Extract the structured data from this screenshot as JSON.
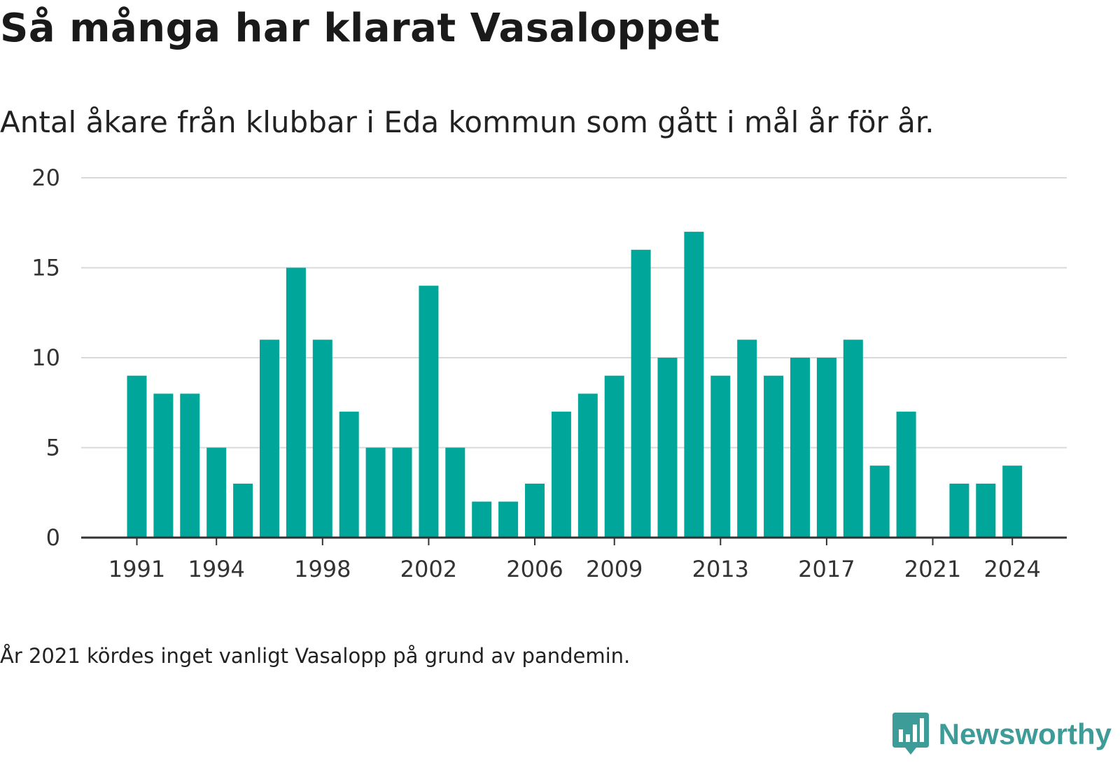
{
  "title": "Så många har klarat Vasaloppet",
  "subtitle": "Antal åkare från klubbar i Eda kommun som gått i mål år för år.",
  "note": "År 2021 kördes inget vanligt Vasalopp på grund av pandemin.",
  "brand": {
    "name": "Newsworthy",
    "color": "#3d9b98",
    "logo_icon": "chat-bubble-bar-chart-icon"
  },
  "colors": {
    "bar": "#00a69a",
    "grid": "#d9d9d9",
    "axis": "#333333"
  },
  "chart_data": {
    "type": "bar",
    "title": "Så många har klarat Vasaloppet",
    "subtitle": "Antal åkare från klubbar i Eda kommun som gått i mål år för år.",
    "xlabel": "",
    "ylabel": "",
    "categories": [
      1991,
      1992,
      1993,
      1994,
      1995,
      1996,
      1997,
      1998,
      1999,
      2000,
      2001,
      2002,
      2003,
      2004,
      2005,
      2006,
      2007,
      2008,
      2009,
      2010,
      2011,
      2012,
      2013,
      2014,
      2015,
      2016,
      2017,
      2018,
      2019,
      2020,
      2021,
      2022,
      2023,
      2024
    ],
    "values": [
      9,
      8,
      8,
      5,
      3,
      11,
      15,
      11,
      7,
      5,
      5,
      14,
      5,
      2,
      2,
      3,
      7,
      8,
      9,
      16,
      10,
      17,
      9,
      11,
      9,
      10,
      10,
      11,
      4,
      7,
      0,
      3,
      3,
      4
    ],
    "xticks": [
      "1991",
      "1994",
      "1998",
      "2002",
      "2006",
      "2009",
      "2013",
      "2017",
      "2021",
      "2024"
    ],
    "yticks": [
      0,
      5,
      10,
      15,
      20
    ],
    "ylim": [
      0,
      20
    ],
    "grid": true,
    "legend": "none"
  }
}
